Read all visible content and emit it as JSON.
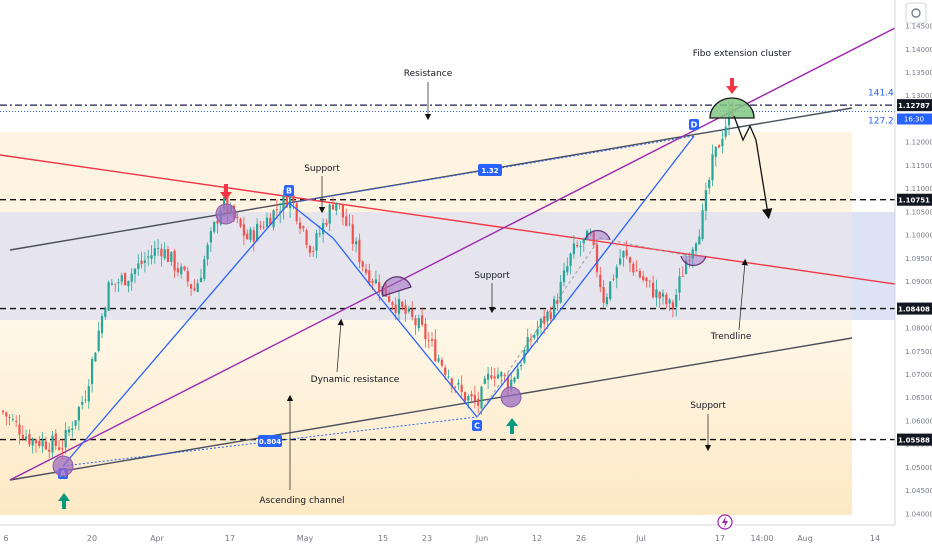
{
  "chart_data": {
    "type": "candlestick",
    "x_ticks": [
      "6",
      "20",
      "Apr",
      "17",
      "May",
      "15",
      "23",
      "Jun",
      "12",
      "26",
      "Jul",
      "17",
      "14:00",
      "Aug",
      "14"
    ],
    "y_ticks": [
      "1.14500",
      "1.14000",
      "1.13500",
      "1.13000",
      "1.12500",
      "1.12000",
      "1.11500",
      "1.11000",
      "1.10500",
      "1.10000",
      "1.09500",
      "1.09000",
      "1.08500",
      "1.08000",
      "1.07500",
      "1.07000",
      "1.06500",
      "1.06000",
      "1.05500",
      "1.05000",
      "1.04500",
      "1.04000"
    ],
    "ylim": [
      1.0375,
      1.1505
    ],
    "levels": [
      {
        "price": 1.12787,
        "label": "1.12787",
        "style": "dashdot",
        "color": "#1e1e4a"
      },
      {
        "price": 1.10751,
        "label": "1.10751",
        "style": "dashed",
        "color": "#111111"
      },
      {
        "price": 1.08408,
        "label": "1.08408",
        "style": "dashed",
        "color": "#111111"
      },
      {
        "price": 1.05588,
        "label": "1.05588",
        "style": "dashed",
        "color": "#111111"
      }
    ],
    "fib_levels": [
      {
        "label": "141.40%",
        "price": 1.1287
      },
      {
        "label": "127.20%",
        "price": 1.1265
      }
    ],
    "current_time_label": "16:30",
    "harmonic_points": [
      "A",
      "B",
      "C",
      "D"
    ],
    "ratios": [
      "1.32",
      "0.804"
    ],
    "annotations": [
      "Fibo extension cluster",
      "Resistance",
      "Support",
      "Support",
      "Support",
      "Dynamic resistance",
      "Trendline",
      "Ascending channel"
    ],
    "colors": {
      "up_candle": "#26a69a",
      "down_candle": "#ef5350",
      "trendline": "#f23645",
      "diagonal": "#9c27b0",
      "pattern": "#2962ff",
      "highlight": "#9c6bc0",
      "cluster": "#81c784"
    }
  }
}
